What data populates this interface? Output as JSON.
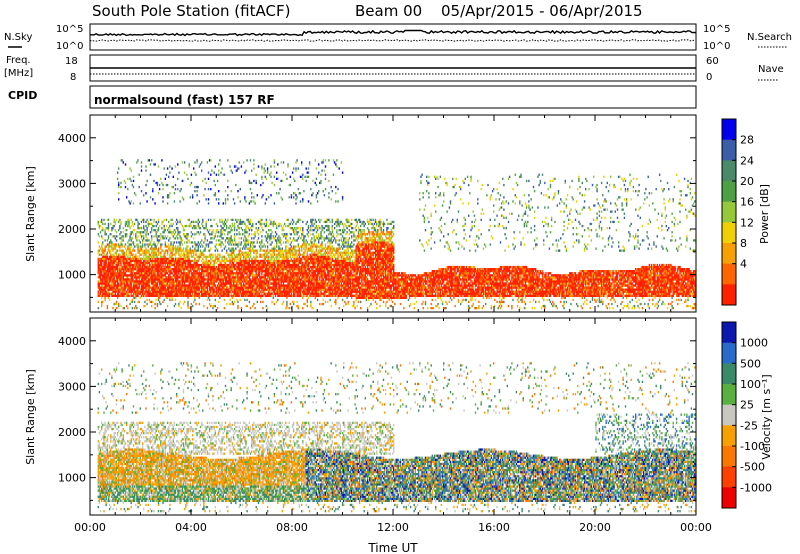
{
  "header": {
    "title": "South Pole Station (fitACF)",
    "beam": "Beam 00",
    "date_range": "05/Apr/2015 - 06/Apr/2015"
  },
  "noise_panel": {
    "left_label": "N.Sky",
    "right_label": "N.Search",
    "left_ticks": [
      "10^5",
      "10^0"
    ],
    "right_ticks": [
      "10^5",
      "10^0"
    ]
  },
  "freq_panel": {
    "left_label_1": "Freq.",
    "left_label_2": "[MHz]",
    "right_label": "Nave",
    "left_ticks": [
      "18",
      "8"
    ],
    "right_ticks": [
      "60",
      "0"
    ]
  },
  "cpid": {
    "label": "CPID",
    "value": "normalsound (fast) 157 RF"
  },
  "chart_data": [
    {
      "type": "heatmap",
      "panel": "power",
      "ylabel": "Slant Range [km]",
      "xlabel": "",
      "ylim": [
        180,
        4500
      ],
      "yticks": [
        "1000",
        "2000",
        "3000",
        "4000"
      ],
      "colorbar_label": "Power [dB]",
      "colorbar_ticks": [
        "4",
        "8",
        "12",
        "16",
        "20",
        "24",
        "28"
      ],
      "colorbar_colors": [
        "#0000ee",
        "#3a5ea8",
        "#4a8a6a",
        "#4ea044",
        "#96c83c",
        "#f0d000",
        "#f8a000",
        "#ff6600",
        "#ff2000"
      ],
      "features": [
        {
          "from_h": 0,
          "to_h": 24,
          "range_km": [
            400,
            1400
          ],
          "level": "high"
        },
        {
          "from_h": 0,
          "to_h": 12,
          "range_km": [
            1400,
            2200
          ],
          "level": "medium"
        },
        {
          "from_h": 1,
          "to_h": 10,
          "range_km": [
            2600,
            3500
          ],
          "level": "low"
        },
        {
          "from_h": 13,
          "to_h": 24,
          "range_km": [
            1500,
            3200
          ],
          "level": "low"
        }
      ]
    },
    {
      "type": "heatmap",
      "panel": "velocity",
      "ylabel": "Slant Range [km]",
      "xlabel": "Time UT",
      "ylim": [
        180,
        4500
      ],
      "yticks": [
        "1000",
        "2000",
        "3000",
        "4000"
      ],
      "xticks": [
        "00:00",
        "04:00",
        "08:00",
        "12:00",
        "16:00",
        "20:00",
        "00:00"
      ],
      "xlim": [
        0,
        24
      ],
      "colorbar_label": "Velocity [m s⁻¹]",
      "colorbar_ticks": [
        "1000",
        "500",
        "100",
        "25",
        "-25",
        "-100",
        "-500",
        "-1000"
      ],
      "colorbar_colors": [
        "#0a18b0",
        "#2a6ac8",
        "#3a8a6a",
        "#58b040",
        "#c8c8c0",
        "#f8a000",
        "#f87800",
        "#ff4000",
        "#ee0000"
      ],
      "features": [
        {
          "from_h": 0,
          "to_h": 8,
          "range_km": [
            800,
            1500
          ],
          "level": "negative"
        },
        {
          "from_h": 0,
          "to_h": 24,
          "range_km": [
            400,
            1000
          ],
          "level": "mixed"
        },
        {
          "from_h": 10,
          "to_h": 24,
          "range_km": [
            500,
            1500
          ],
          "level": "positive"
        },
        {
          "from_h": 0,
          "to_h": 8,
          "range_km": [
            1700,
            2200
          ],
          "level": "near-zero"
        }
      ]
    }
  ]
}
